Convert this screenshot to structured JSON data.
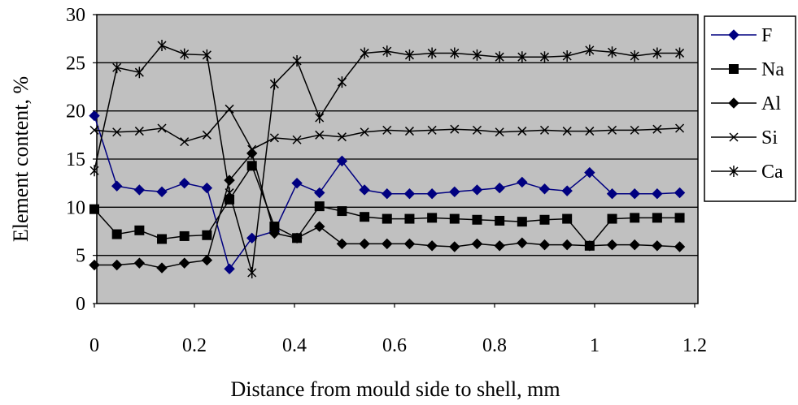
{
  "chart_data": {
    "type": "line",
    "title": "",
    "xlabel": "Distance from mould side to shell, mm",
    "ylabel": "Element content, %",
    "xlim": [
      0,
      1.2
    ],
    "ylim": [
      0,
      30
    ],
    "xticks": [
      "0",
      "0.2",
      "0.4",
      "0.6",
      "0.8",
      "1",
      "1.2"
    ],
    "yticks": [
      "0",
      "5",
      "10",
      "15",
      "20",
      "25",
      "30"
    ],
    "grid": "horizontal",
    "legend_position": "right",
    "plot_background": "#c0c0c0",
    "x": [
      0,
      0.045,
      0.09,
      0.135,
      0.18,
      0.225,
      0.27,
      0.315,
      0.36,
      0.405,
      0.45,
      0.495,
      0.54,
      0.585,
      0.63,
      0.675,
      0.72,
      0.765,
      0.81,
      0.855,
      0.9,
      0.945,
      0.99,
      1.035,
      1.08,
      1.125,
      1.17
    ],
    "series": [
      {
        "name": "F",
        "color": "#000080",
        "marker": "diamond",
        "values": [
          19.5,
          12.2,
          11.8,
          11.6,
          12.5,
          12.0,
          3.6,
          6.8,
          7.5,
          12.5,
          11.5,
          14.8,
          11.8,
          11.4,
          11.4,
          11.4,
          11.6,
          11.8,
          12.0,
          12.6,
          11.9,
          11.7,
          13.6,
          11.4,
          11.4,
          11.4,
          11.5
        ]
      },
      {
        "name": "Na",
        "color": "#000000",
        "marker": "square",
        "values": [
          9.8,
          7.2,
          7.6,
          6.7,
          7.0,
          7.1,
          10.8,
          14.3,
          8.0,
          6.8,
          10.1,
          9.6,
          9.0,
          8.8,
          8.8,
          8.9,
          8.8,
          8.7,
          8.6,
          8.5,
          8.7,
          8.8,
          6.0,
          8.8,
          8.9,
          8.9,
          8.9
        ]
      },
      {
        "name": "Al",
        "color": "#000000",
        "marker": "diamond",
        "values": [
          4.0,
          4.0,
          4.2,
          3.7,
          4.2,
          4.5,
          12.8,
          15.6,
          7.3,
          6.8,
          8.0,
          6.2,
          6.2,
          6.2,
          6.2,
          6.0,
          5.9,
          6.2,
          6.0,
          6.3,
          6.1,
          6.1,
          6.0,
          6.1,
          6.1,
          6.0,
          5.9
        ]
      },
      {
        "name": "Si",
        "color": "#000000",
        "marker": "x",
        "values": [
          18.0,
          17.8,
          17.9,
          18.2,
          16.8,
          17.5,
          20.2,
          16.0,
          17.2,
          17.0,
          17.5,
          17.3,
          17.8,
          18.0,
          17.9,
          18.0,
          18.1,
          18.0,
          17.8,
          17.9,
          18.0,
          17.9,
          17.9,
          18.0,
          18.0,
          18.1,
          18.2
        ]
      },
      {
        "name": "Ca",
        "color": "#000000",
        "marker": "asterisk",
        "values": [
          13.8,
          24.5,
          24.0,
          26.8,
          25.9,
          25.8,
          11.5,
          3.2,
          22.8,
          25.2,
          19.3,
          23.0,
          26.0,
          26.2,
          25.8,
          26.0,
          26.0,
          25.8,
          25.6,
          25.6,
          25.6,
          25.7,
          26.3,
          26.1,
          25.7,
          26.0,
          26.0
        ]
      }
    ]
  }
}
